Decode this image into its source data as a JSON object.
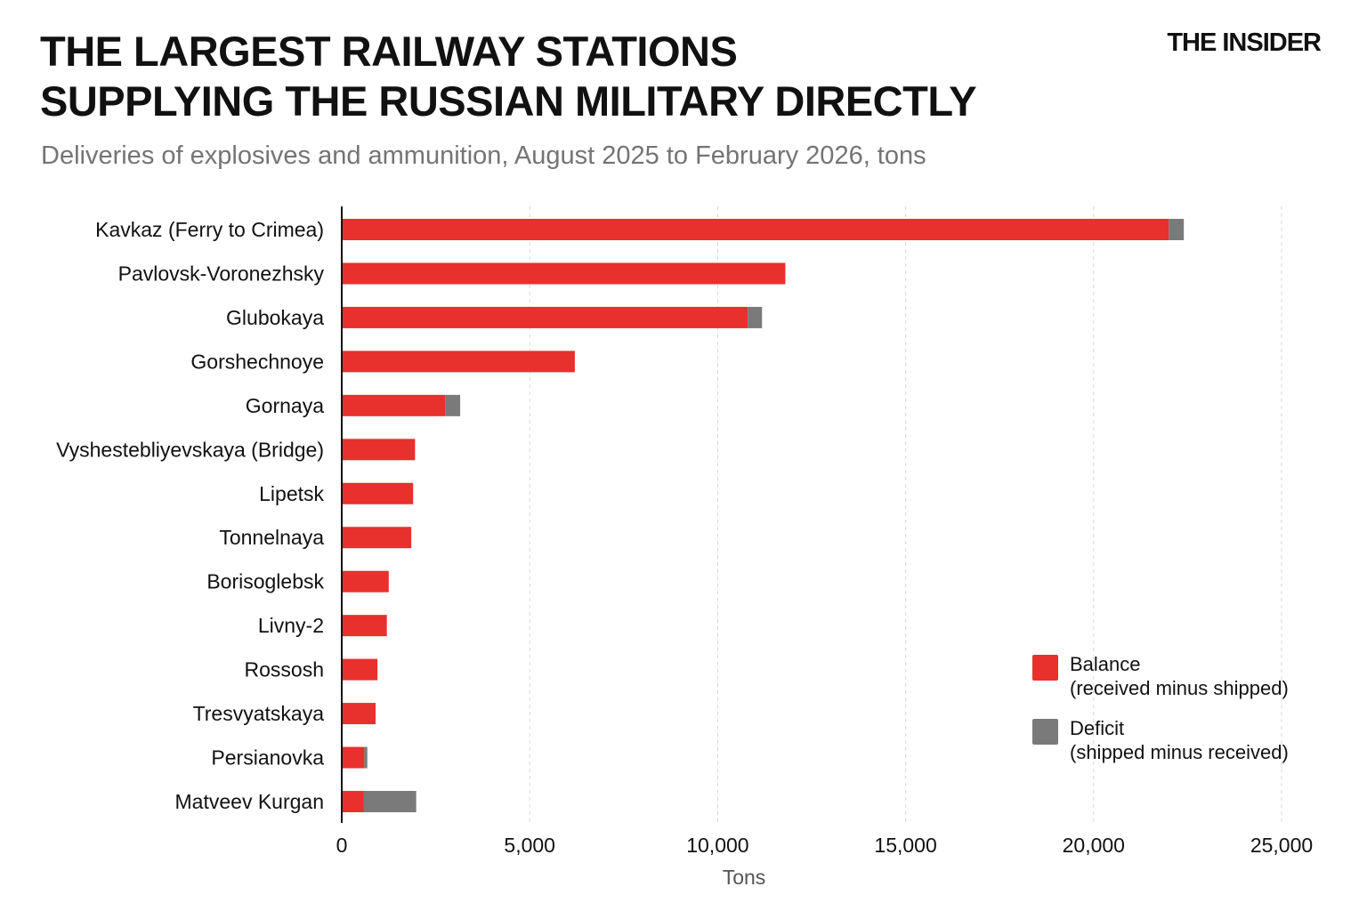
{
  "header": {
    "title_line1": "THE LARGEST RAILWAY STATIONS",
    "title_line2": "SUPPLYING THE RUSSIAN MILITARY DIRECTLY",
    "subtitle": "Deliveries of explosives and ammunition, August 2025 to February 2026, tons",
    "brand": "THE INSIDER"
  },
  "legend": {
    "balance_label": "Balance",
    "balance_note": "(received minus shipped)",
    "deficit_label": "Deficit",
    "deficit_note": "(shipped minus received)"
  },
  "colors": {
    "balance": "#e8302c",
    "deficit": "#7a7a7a",
    "grid": "#d9d9d9",
    "axis": "#111111"
  },
  "chart_data": {
    "type": "bar",
    "orientation": "horizontal",
    "stacked": true,
    "categories": [
      "Kavkaz (Ferry to Crimea)",
      "Pavlovsk-Voronezhsky",
      "Glubokaya",
      "Gorshechnoye",
      "Gornaya",
      "Vyshestebliyevskaya (Bridge)",
      "Lipetsk",
      "Tonnelnaya",
      "Borisoglebsk",
      "Livny-2",
      "Rossosh",
      "Tresvyatskaya",
      "Persianovka",
      "Matveev Kurgan"
    ],
    "series": [
      {
        "name": "Balance",
        "values": [
          22000,
          11800,
          10800,
          6200,
          2750,
          1950,
          1900,
          1850,
          1250,
          1200,
          950,
          900,
          600,
          580
        ]
      },
      {
        "name": "Deficit",
        "values": [
          400,
          0,
          380,
          0,
          400,
          0,
          0,
          0,
          0,
          0,
          0,
          0,
          80,
          1400
        ]
      }
    ],
    "xlabel": "Tons",
    "xlim": [
      0,
      25000
    ],
    "x_ticks": [
      0,
      5000,
      10000,
      15000,
      20000,
      25000
    ],
    "x_tick_labels": [
      "0",
      "5,000",
      "10,000",
      "15,000",
      "20,000",
      "25,000"
    ],
    "grid": "vertical-dashed",
    "legend_position": "bottom-right"
  }
}
